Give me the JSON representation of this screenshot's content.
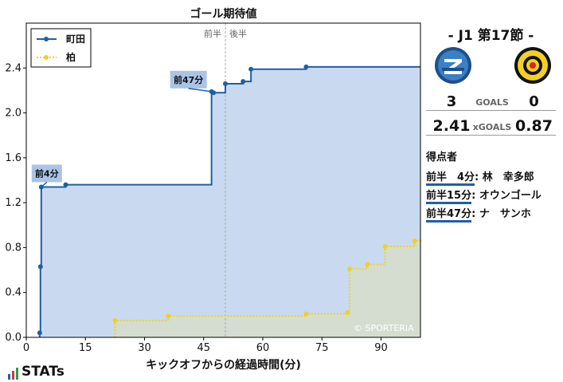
{
  "chart_data": {
    "type": "line",
    "title": "ゴール期待値",
    "xlabel": "キックオフからの経過時間(分)",
    "ylabel": "",
    "xlim": [
      0,
      100
    ],
    "ylim": [
      0,
      2.8
    ],
    "xticks": [
      0,
      15,
      30,
      45,
      60,
      75,
      90
    ],
    "yticks": [
      0.0,
      0.4,
      0.8,
      1.2,
      1.6,
      2.0,
      2.4
    ],
    "ytick_labels": [
      "0.0",
      "0.4",
      "0.8",
      "1.2",
      "1.6",
      "2.0",
      "2.4"
    ],
    "halftime_x": 50.5,
    "halftime_labels": [
      "前半",
      "後半"
    ],
    "grid": false,
    "legend": "top-left",
    "series": [
      {
        "name": "町田",
        "color": "#1f5fa6",
        "fill": "#c9daf0",
        "style": "solid",
        "points": [
          [
            3.4,
            0.04
          ],
          [
            3.6,
            0.63
          ],
          [
            3.8,
            1.34
          ],
          [
            10,
            1.36
          ],
          [
            47,
            2.19
          ],
          [
            47.5,
            2.18
          ],
          [
            50.5,
            2.26
          ],
          [
            55,
            2.28
          ],
          [
            57,
            2.39
          ],
          [
            71,
            2.41
          ],
          [
            100,
            2.41
          ]
        ]
      },
      {
        "name": "柏",
        "color": "#f2d024",
        "fill": "#d7dec6",
        "style": "dotted",
        "points": [
          [
            22.5,
            0.15
          ],
          [
            36,
            0.19
          ],
          [
            71,
            0.21
          ],
          [
            81.5,
            0.22
          ],
          [
            82,
            0.61
          ],
          [
            86.5,
            0.65
          ],
          [
            91,
            0.81
          ],
          [
            98.5,
            0.86
          ],
          [
            100,
            0.87
          ]
        ]
      }
    ],
    "annotations": [
      {
        "text": "前4分",
        "x": 3.8,
        "y": 1.34
      },
      {
        "text": "前47分",
        "x": 47,
        "y": 2.19
      }
    ],
    "credit": "© SPORTERIA"
  },
  "match": {
    "round": "-  J1 第17節  -",
    "home_score": "3",
    "away_score": "0",
    "goals_label": "GOALS",
    "home_xg": "2.41",
    "away_xg": "0.87",
    "xg_label": "xGOALS",
    "colors": {
      "home": "#1f5fa6",
      "away": "#f2d024"
    }
  },
  "scorers": {
    "heading": "得点者",
    "items": [
      {
        "time": "前半　4分",
        "name": "林　幸多郎"
      },
      {
        "time": "前半15分",
        "name": "オウンゴール"
      },
      {
        "time": "前半47分",
        "name": "ナ　サンホ"
      }
    ]
  },
  "brand": {
    "logo_text": "STATs"
  }
}
